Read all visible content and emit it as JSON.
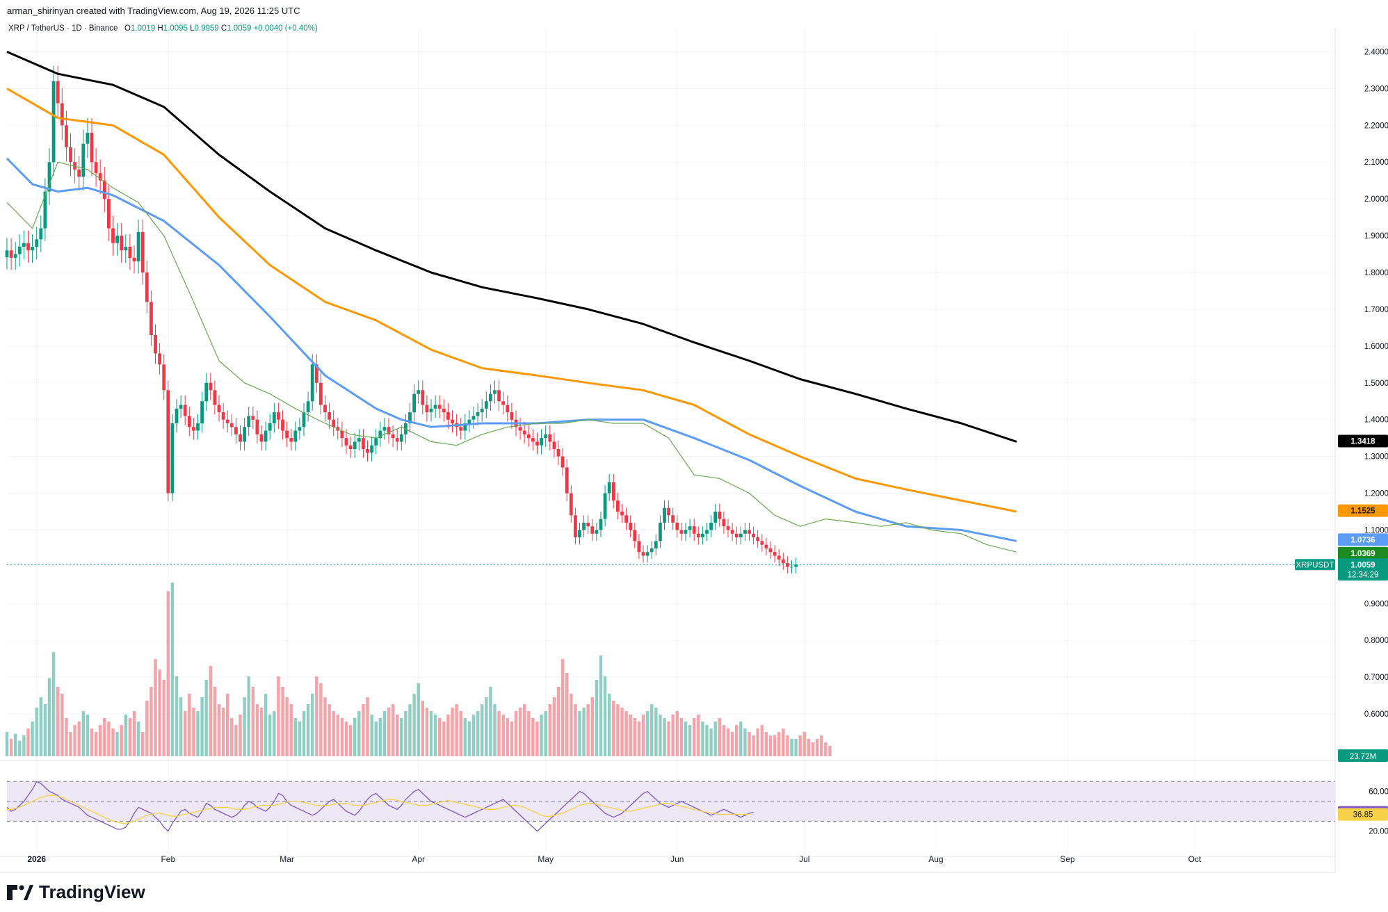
{
  "header": {
    "attribution": "arman_shirinyan created with TradingView.com, Aug 19, 2026 11:25 UTC"
  },
  "legend": {
    "symbol": "XRP / TetherUS · 1D · Binance",
    "o_label": "O",
    "o": "1.0019",
    "h_label": "H",
    "h": "1.0095",
    "l_label": "L",
    "l": "0.9959",
    "c_label": "C",
    "c": "1.0059",
    "change": "+0.0040 (+0.40%)"
  },
  "footer": {
    "brand": "TradingView"
  },
  "colors": {
    "up": "#089981",
    "down": "#f23645",
    "up_volume": "#8fcfc3",
    "down_volume": "#f5a3a8",
    "ma200": "#000000",
    "ma100": "#ff9800",
    "ma50": "#5b9cf6",
    "ma20": "#6aa84f",
    "rsi": "#7e57c2",
    "rsi_ma": "#f5d24a",
    "rsi_band": "#ede7f6",
    "grid": "#f0f3fa"
  },
  "chart_data": {
    "type": "candlestick",
    "price_axis": {
      "min": 0.5,
      "max": 2.45,
      "ticks": [
        "2.4000",
        "2.3000",
        "2.2000",
        "2.1000",
        "2.0000",
        "1.9000",
        "1.8000",
        "1.7000",
        "1.6000",
        "1.5000",
        "1.4000",
        "1.3000",
        "1.2000",
        "1.1000",
        "0.9000",
        "0.8000",
        "0.7000",
        "0.6000"
      ]
    },
    "time_axis": {
      "labels": [
        {
          "text": "2026",
          "index": 7,
          "bold": true
        },
        {
          "text": "Feb",
          "index": 38
        },
        {
          "text": "Mar",
          "index": 66
        },
        {
          "text": "Apr",
          "index": 97
        },
        {
          "text": "May",
          "index": 127
        },
        {
          "text": "Jun",
          "index": 158
        },
        {
          "text": "Jul",
          "index": 188
        },
        {
          "text": "Aug",
          "index": 219
        },
        {
          "text": "Sep",
          "index": 250
        },
        {
          "text": "Oct",
          "index": 280
        }
      ],
      "total_slots": 312,
      "first_date": "2025-12-25"
    },
    "moving_averages": [
      {
        "name": "MA200",
        "color": "#000000",
        "last": "1.3418",
        "points": [
          [
            0,
            2.4
          ],
          [
            12,
            2.34
          ],
          [
            25,
            2.31
          ],
          [
            37,
            2.25
          ],
          [
            50,
            2.12
          ],
          [
            62,
            2.02
          ],
          [
            75,
            1.92
          ],
          [
            87,
            1.86
          ],
          [
            100,
            1.8
          ],
          [
            112,
            1.76
          ],
          [
            125,
            1.73
          ],
          [
            137,
            1.7
          ],
          [
            150,
            1.66
          ],
          [
            162,
            1.61
          ],
          [
            175,
            1.56
          ],
          [
            187,
            1.51
          ],
          [
            200,
            1.47
          ],
          [
            212,
            1.43
          ],
          [
            225,
            1.39
          ],
          [
            238,
            1.34
          ]
        ]
      },
      {
        "name": "MA100",
        "color": "#ff9800",
        "last": "1.1525",
        "points": [
          [
            0,
            2.3
          ],
          [
            12,
            2.22
          ],
          [
            25,
            2.2
          ],
          [
            37,
            2.12
          ],
          [
            50,
            1.95
          ],
          [
            62,
            1.82
          ],
          [
            75,
            1.72
          ],
          [
            87,
            1.67
          ],
          [
            100,
            1.59
          ],
          [
            112,
            1.54
          ],
          [
            125,
            1.52
          ],
          [
            137,
            1.5
          ],
          [
            150,
            1.48
          ],
          [
            162,
            1.44
          ],
          [
            175,
            1.36
          ],
          [
            187,
            1.3
          ],
          [
            200,
            1.24
          ],
          [
            212,
            1.21
          ],
          [
            225,
            1.18
          ],
          [
            238,
            1.15
          ]
        ]
      },
      {
        "name": "MA50",
        "color": "#5b9cf6",
        "last": "1.0736",
        "points": [
          [
            0,
            2.11
          ],
          [
            6,
            2.04
          ],
          [
            12,
            2.02
          ],
          [
            19,
            2.03
          ],
          [
            25,
            2.01
          ],
          [
            37,
            1.94
          ],
          [
            50,
            1.82
          ],
          [
            62,
            1.68
          ],
          [
            75,
            1.52
          ],
          [
            87,
            1.43
          ],
          [
            93,
            1.4
          ],
          [
            100,
            1.38
          ],
          [
            112,
            1.39
          ],
          [
            125,
            1.39
          ],
          [
            137,
            1.4
          ],
          [
            150,
            1.4
          ],
          [
            162,
            1.35
          ],
          [
            175,
            1.29
          ],
          [
            187,
            1.22
          ],
          [
            200,
            1.15
          ],
          [
            212,
            1.11
          ],
          [
            225,
            1.1
          ],
          [
            238,
            1.07
          ]
        ]
      },
      {
        "name": "MA20",
        "color": "#6aa84f",
        "last": "1.0369",
        "points": [
          [
            0,
            1.99
          ],
          [
            6,
            1.92
          ],
          [
            12,
            2.1
          ],
          [
            19,
            2.08
          ],
          [
            25,
            2.03
          ],
          [
            31,
            1.99
          ],
          [
            37,
            1.9
          ],
          [
            44,
            1.72
          ],
          [
            50,
            1.56
          ],
          [
            56,
            1.5
          ],
          [
            62,
            1.47
          ],
          [
            68,
            1.43
          ],
          [
            75,
            1.39
          ],
          [
            81,
            1.36
          ],
          [
            87,
            1.35
          ],
          [
            93,
            1.38
          ],
          [
            100,
            1.34
          ],
          [
            106,
            1.33
          ],
          [
            112,
            1.36
          ],
          [
            118,
            1.38
          ],
          [
            125,
            1.39
          ],
          [
            131,
            1.39
          ],
          [
            137,
            1.4
          ],
          [
            143,
            1.39
          ],
          [
            150,
            1.39
          ],
          [
            156,
            1.35
          ],
          [
            162,
            1.25
          ],
          [
            168,
            1.24
          ],
          [
            175,
            1.2
          ],
          [
            181,
            1.14
          ],
          [
            187,
            1.11
          ],
          [
            193,
            1.13
          ],
          [
            200,
            1.12
          ],
          [
            206,
            1.11
          ],
          [
            212,
            1.12
          ],
          [
            218,
            1.1
          ],
          [
            225,
            1.09
          ],
          [
            231,
            1.06
          ],
          [
            238,
            1.04
          ]
        ]
      }
    ],
    "last_price_label": {
      "symbol": "XRPUSDT",
      "price": "1.0059",
      "countdown": "12:34:29"
    },
    "volume_label": "23.72M",
    "rsi": {
      "value": "38.97",
      "ma_value": "36.85",
      "ticks": [
        "60.00",
        "20.00"
      ],
      "band": [
        30,
        70
      ]
    },
    "price_path": [
      1.86,
      1.84,
      1.85,
      1.87,
      1.88,
      1.86,
      1.87,
      1.89,
      1.92,
      2.02,
      2.1,
      2.32,
      2.26,
      2.2,
      2.14,
      2.1,
      2.08,
      2.06,
      2.15,
      2.18,
      2.1,
      2.07,
      2.05,
      2.0,
      1.92,
      1.88,
      1.9,
      1.86,
      1.87,
      1.84,
      1.83,
      1.91,
      1.8,
      1.72,
      1.63,
      1.58,
      1.55,
      1.48,
      1.2,
      1.39,
      1.43,
      1.44,
      1.41,
      1.38,
      1.37,
      1.39,
      1.45,
      1.5,
      1.48,
      1.44,
      1.42,
      1.4,
      1.39,
      1.38,
      1.36,
      1.34,
      1.38,
      1.41,
      1.4,
      1.36,
      1.34,
      1.37,
      1.39,
      1.42,
      1.4,
      1.37,
      1.35,
      1.34,
      1.37,
      1.38,
      1.42,
      1.45,
      1.55,
      1.5,
      1.44,
      1.42,
      1.4,
      1.38,
      1.37,
      1.35,
      1.33,
      1.32,
      1.34,
      1.35,
      1.32,
      1.31,
      1.33,
      1.35,
      1.37,
      1.38,
      1.36,
      1.35,
      1.34,
      1.36,
      1.39,
      1.42,
      1.47,
      1.48,
      1.44,
      1.42,
      1.43,
      1.44,
      1.43,
      1.42,
      1.4,
      1.39,
      1.38,
      1.37,
      1.39,
      1.4,
      1.41,
      1.42,
      1.43,
      1.45,
      1.47,
      1.48,
      1.45,
      1.44,
      1.42,
      1.4,
      1.38,
      1.37,
      1.36,
      1.35,
      1.34,
      1.33,
      1.35,
      1.36,
      1.34,
      1.32,
      1.3,
      1.27,
      1.2,
      1.14,
      1.08,
      1.1,
      1.12,
      1.11,
      1.09,
      1.1,
      1.13,
      1.2,
      1.23,
      1.18,
      1.15,
      1.14,
      1.12,
      1.1,
      1.07,
      1.04,
      1.03,
      1.04,
      1.05,
      1.07,
      1.12,
      1.16,
      1.14,
      1.12,
      1.1,
      1.09,
      1.1,
      1.11,
      1.09,
      1.08,
      1.09,
      1.1,
      1.12,
      1.15,
      1.13,
      1.11,
      1.1,
      1.09,
      1.08,
      1.09,
      1.1,
      1.09,
      1.08,
      1.07,
      1.06,
      1.05,
      1.04,
      1.03,
      1.02,
      1.01,
      1.0,
      1.0,
      1.006
    ],
    "volume_path": [
      14,
      10,
      13,
      9,
      12,
      16,
      20,
      28,
      34,
      30,
      45,
      60,
      40,
      36,
      22,
      14,
      18,
      20,
      26,
      24,
      16,
      14,
      18,
      22,
      20,
      16,
      14,
      18,
      24,
      22,
      26,
      20,
      14,
      32,
      40,
      56,
      50,
      44,
      95,
      100,
      46,
      34,
      26,
      36,
      28,
      26,
      34,
      44,
      52,
      40,
      30,
      28,
      36,
      22,
      18,
      24,
      34,
      46,
      40,
      30,
      28,
      36,
      24,
      26,
      46,
      40,
      34,
      30,
      22,
      20,
      26,
      30,
      36,
      46,
      42,
      34,
      30,
      26,
      24,
      22,
      20,
      18,
      22,
      26,
      30,
      34,
      24,
      20,
      22,
      26,
      28,
      30,
      24,
      22,
      26,
      30,
      36,
      42,
      32,
      28,
      26,
      24,
      22,
      20,
      24,
      28,
      30,
      26,
      22,
      20,
      24,
      26,
      30,
      34,
      40,
      30,
      26,
      24,
      22,
      20,
      26,
      28,
      30,
      26,
      22,
      20,
      24,
      26,
      30,
      34,
      40,
      56,
      48,
      36,
      30,
      26,
      28,
      30,
      34,
      44,
      58,
      46,
      36,
      32,
      30,
      28,
      26,
      24,
      22,
      20,
      24,
      26,
      30,
      28,
      24,
      22,
      20,
      24,
      26,
      22,
      20,
      18,
      22,
      24,
      20,
      18,
      16,
      20,
      22,
      18,
      16,
      14,
      18,
      20,
      16,
      14,
      12,
      16,
      18,
      14,
      12,
      12,
      14,
      16,
      12,
      10,
      10,
      12,
      14,
      10,
      8,
      10,
      12,
      8,
      6
    ],
    "rsi_path": [
      44,
      40,
      42,
      46,
      50,
      56,
      62,
      70,
      68,
      64,
      60,
      58,
      56,
      52,
      50,
      48,
      46,
      44,
      40,
      36,
      34,
      32,
      30,
      28,
      26,
      24,
      22,
      22,
      24,
      30,
      38,
      44,
      42,
      40,
      38,
      34,
      30,
      24,
      20,
      28,
      34,
      40,
      42,
      38,
      36,
      34,
      40,
      48,
      46,
      42,
      40,
      38,
      36,
      34,
      36,
      40,
      46,
      50,
      48,
      44,
      42,
      40,
      44,
      50,
      58,
      56,
      50,
      46,
      44,
      42,
      40,
      38,
      36,
      38,
      42,
      46,
      50,
      52,
      48,
      44,
      40,
      38,
      36,
      40,
      46,
      52,
      56,
      58,
      54,
      50,
      46,
      44,
      42,
      46,
      52,
      56,
      60,
      62,
      58,
      54,
      50,
      48,
      46,
      44,
      42,
      40,
      38,
      36,
      34,
      36,
      38,
      40,
      42,
      44,
      46,
      48,
      50,
      52,
      48,
      44,
      40,
      36,
      32,
      28,
      24,
      20,
      24,
      28,
      32,
      36,
      40,
      44,
      48,
      52,
      56,
      60,
      58,
      54,
      50,
      46,
      42,
      38,
      36,
      34,
      36,
      38,
      42,
      46,
      50,
      54,
      58,
      60,
      56,
      52,
      48,
      46,
      44,
      46,
      48,
      50,
      48,
      46,
      44,
      42,
      40,
      38,
      36,
      38,
      40,
      42,
      40,
      38,
      36,
      34,
      36,
      38,
      39
    ],
    "rsi_ma_path": [
      42,
      42,
      43,
      44,
      46,
      48,
      50,
      52,
      54,
      55,
      56,
      56,
      55,
      54,
      52,
      50,
      48,
      46,
      44,
      42,
      40,
      38,
      36,
      34,
      32,
      30,
      29,
      28,
      28,
      29,
      30,
      32,
      34,
      36,
      37,
      38,
      38,
      37,
      36,
      35,
      35,
      36,
      37,
      38,
      39,
      40,
      41,
      42,
      43,
      44,
      44,
      44,
      44,
      43,
      42,
      42,
      42,
      43,
      44,
      45,
      46,
      46,
      46,
      46,
      47,
      48,
      49,
      50,
      50,
      50,
      49,
      48,
      47,
      46,
      46,
      46,
      46,
      47,
      48,
      48,
      48,
      47,
      46,
      46,
      46,
      47,
      48,
      49,
      50,
      51,
      52,
      52,
      51,
      50,
      49,
      48,
      47,
      46,
      46,
      46,
      47,
      48,
      49,
      50,
      51,
      50,
      49,
      48,
      47,
      46,
      45,
      44,
      43,
      42,
      42,
      42,
      43,
      44,
      45,
      46,
      46,
      45,
      44,
      42,
      40,
      38,
      36,
      35,
      35,
      36,
      37,
      38,
      40,
      42,
      44,
      46,
      47,
      48,
      48,
      47,
      46,
      45,
      44,
      43,
      42,
      41,
      40,
      40,
      41,
      42,
      43,
      44,
      45,
      46,
      47,
      48,
      48,
      47,
      46,
      45,
      44,
      43,
      42,
      41,
      40,
      39,
      38,
      38,
      37,
      37,
      37,
      37,
      37,
      37,
      37,
      37
    ]
  }
}
